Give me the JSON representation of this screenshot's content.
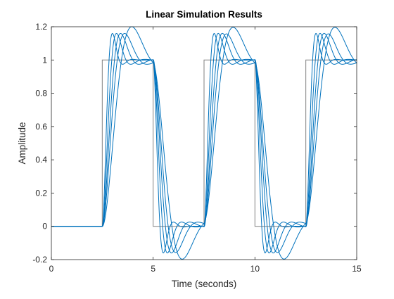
{
  "chart_data": {
    "type": "line",
    "title": "Linear Simulation Results",
    "xlabel": "Time (seconds)",
    "ylabel": "Amplitude",
    "xlim": [
      0,
      15
    ],
    "ylim": [
      -0.2,
      1.2
    ],
    "xticks": [
      0,
      5,
      10,
      15
    ],
    "xtick_labels": [
      "0",
      "5",
      "10",
      "15"
    ],
    "yticks": [
      -0.2,
      0,
      0.2,
      0.4,
      0.6,
      0.8,
      1,
      1.2
    ],
    "ytick_labels": [
      "-0.2",
      "0",
      "0.2",
      "0.4",
      "0.6",
      "0.8",
      "1",
      "1.2"
    ],
    "grid": false,
    "box": true,
    "input": {
      "color": "#808080",
      "x": [
        0,
        2.5,
        2.5,
        5,
        5,
        7.5,
        7.5,
        10,
        10,
        12.5,
        12.5,
        15
      ],
      "y": [
        0,
        0,
        1,
        1,
        0,
        0,
        1,
        1,
        0,
        0,
        1,
        1
      ]
    },
    "series_color": "#0072BD",
    "series": [
      {
        "peak_time": 0.5,
        "overshoot": 0.16,
        "settle_rate": 7.0
      },
      {
        "peak_time": 0.7,
        "overshoot": 0.16,
        "settle_rate": 5.0
      },
      {
        "peak_time": 0.9,
        "overshoot": 0.16,
        "settle_rate": 3.9
      },
      {
        "peak_time": 1.1,
        "overshoot": 0.16,
        "settle_rate": 3.2
      },
      {
        "peak_time": 1.45,
        "overshoot": 0.2,
        "settle_rate": 1.6
      }
    ]
  }
}
